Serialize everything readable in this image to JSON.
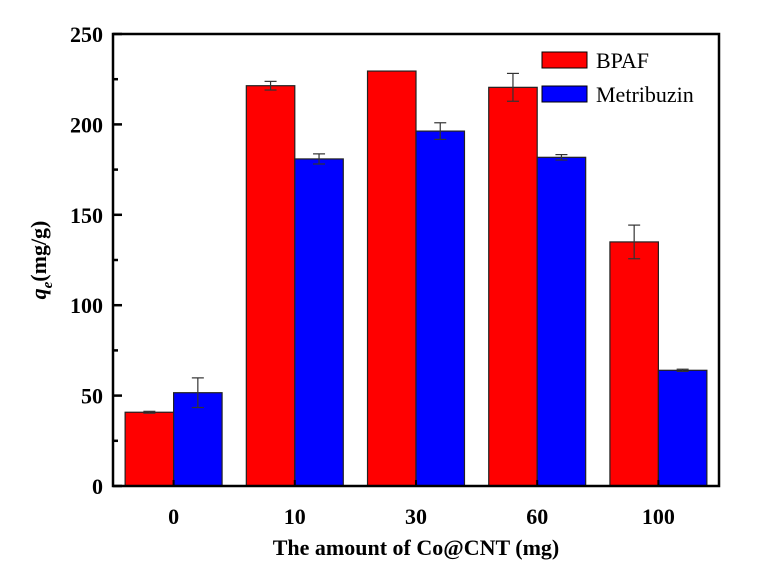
{
  "chart_data": {
    "type": "bar",
    "title": "",
    "xlabel": "The amount of Co@CNT (mg)",
    "ylabel": {
      "symbol": "q",
      "subscript": "e",
      "unit": "(mg/g)"
    },
    "categories": [
      "0",
      "10",
      "30",
      "60",
      "100"
    ],
    "ylim": [
      0,
      250
    ],
    "yticks_major": [
      0,
      50,
      100,
      150,
      200,
      250
    ],
    "yticks_minor": [
      25,
      75,
      125,
      175,
      225
    ],
    "yticks_labels": [
      "0",
      "50",
      "100",
      "150",
      "200",
      "250"
    ],
    "grid": false,
    "legend_position": "top-right",
    "series": [
      {
        "name": "BPAF",
        "color": "#ff0000",
        "values": [
          40.8,
          221.4,
          229.5,
          220.5,
          135.0
        ],
        "errors": [
          0.5,
          2.4,
          0,
          7.7,
          9.3
        ]
      },
      {
        "name": "Metribuzin",
        "color": "#0000ff",
        "values": [
          51.6,
          180.9,
          196.3,
          181.8,
          64.0
        ],
        "errors": [
          8.2,
          2.8,
          4.6,
          1.5,
          0.6
        ]
      }
    ]
  }
}
